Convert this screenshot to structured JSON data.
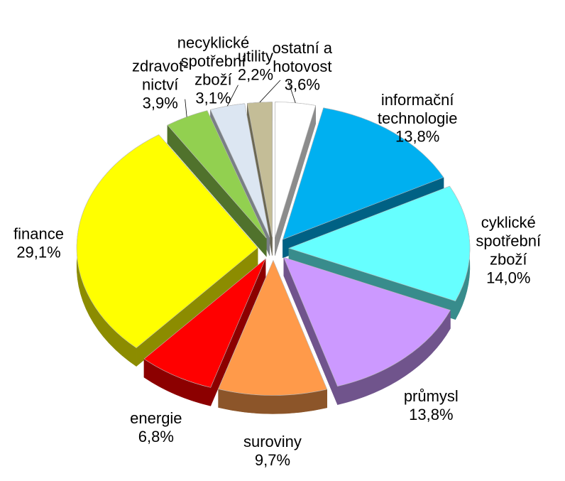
{
  "chart_data": {
    "type": "pie",
    "categories": [
      "ostatní a\nhotovost",
      "informační\ntechnologie",
      "cyklické\nspotřební\nzboží",
      "průmysl",
      "suroviny",
      "energie",
      "finance",
      "zdravot-\nnictví",
      "necyklické\nspotřební\nzboží",
      "utility"
    ],
    "values": [
      3.6,
      13.8,
      14.0,
      13.8,
      9.7,
      6.8,
      29.1,
      3.9,
      3.1,
      2.2
    ],
    "value_labels": [
      "3,6%",
      "13,8%",
      "14,0%",
      "13,8%",
      "9,7%",
      "6,8%",
      "29,1%",
      "3,9%",
      "3,1%",
      "2,2%"
    ],
    "colors": [
      "#ffffff",
      "#00b0f0",
      "#66ffff",
      "#cc99ff",
      "#ff9a4a",
      "#ff0000",
      "#ffff00",
      "#92d050",
      "#dce6f2",
      "#c4bd97"
    ]
  }
}
